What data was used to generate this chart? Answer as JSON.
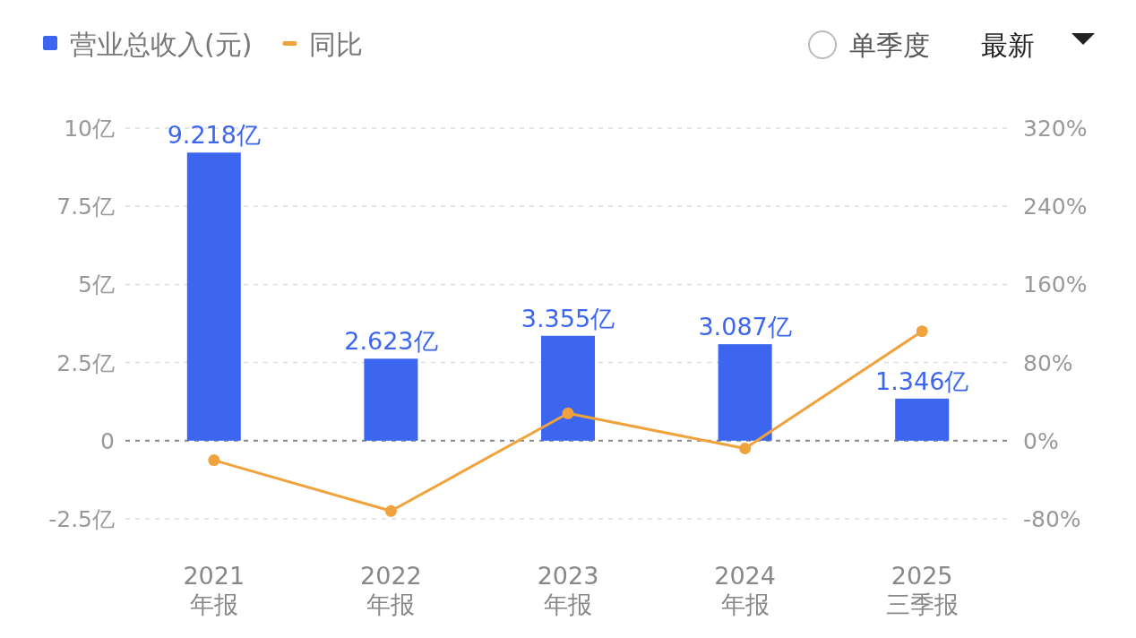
{
  "chart_data": {
    "type": "bar",
    "categories": [
      "2021 年报",
      "2022 年报",
      "2023 年报",
      "2024 年报",
      "2025 三季报"
    ],
    "series": [
      {
        "name": "营业总收入(元)",
        "color": "#3d66f0",
        "values": [
          9.218,
          2.623,
          3.355,
          3.087,
          1.346
        ],
        "value_labels": [
          "9.218亿",
          "2.623亿",
          "3.355亿",
          "3.087亿",
          "1.346亿"
        ]
      },
      {
        "name": "同比",
        "type": "line",
        "axis": "y2",
        "color": "#f0a23c",
        "values": [
          -20,
          -72,
          28,
          -8,
          112
        ]
      }
    ],
    "ylim": [
      -2.5,
      10
    ],
    "yticks": [
      {
        "value": -2.5,
        "label": "-2.5亿"
      },
      0,
      {
        "value": 2.5,
        "label": "2.5亿"
      },
      {
        "value": 5,
        "label": "5亿"
      },
      {
        "value": 7.5,
        "label": "7.5亿"
      },
      {
        "value": 10,
        "label": "10亿"
      }
    ],
    "y2lim": [
      -80,
      320
    ],
    "y2ticks": [
      {
        "value": -80,
        "label": "-80%"
      },
      {
        "value": 0,
        "label": "0%"
      },
      {
        "value": 80,
        "label": "80%"
      },
      {
        "value": 160,
        "label": "160%"
      },
      {
        "value": 240,
        "label": "240%"
      },
      {
        "value": 320,
        "label": "320%"
      }
    ],
    "ref_lines": [
      {
        "axis": "y",
        "value": 0,
        "color": "#888888",
        "line_style": "dashed"
      }
    ],
    "grid": "y",
    "legend": "top left",
    "marker": "circle",
    "annotations": [
      "单季度",
      "最新"
    ]
  }
}
